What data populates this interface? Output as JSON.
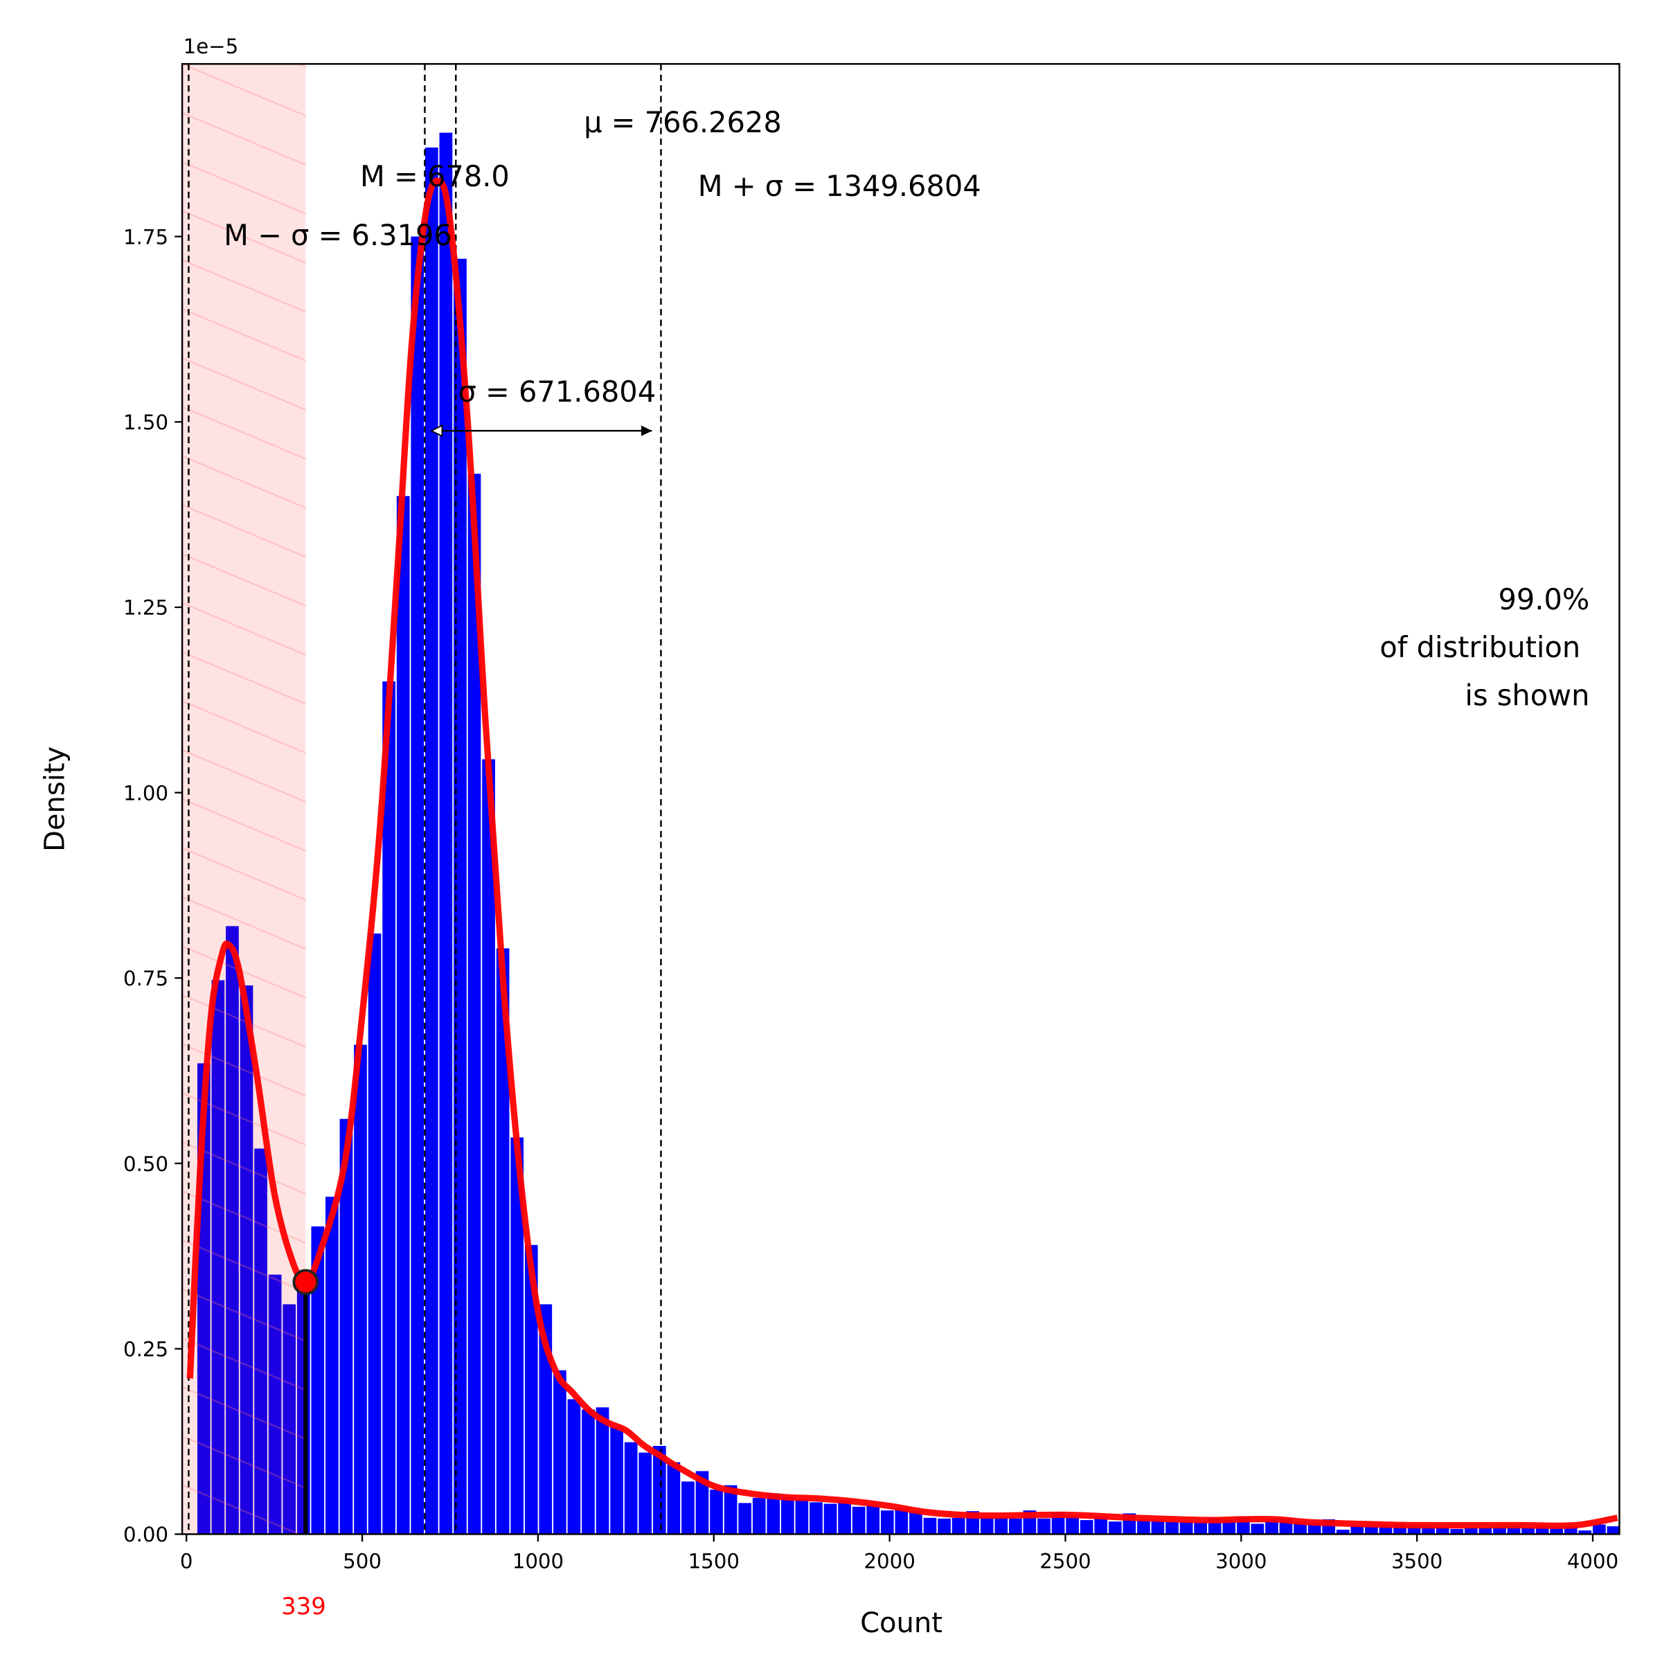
{
  "chart_data": {
    "type": "bar",
    "title": "",
    "xlabel": "Count",
    "ylabel": "Density",
    "y_offset_label": "1e−5",
    "xlim": [
      -12,
      4076
    ],
    "ylim": [
      0,
      1.983
    ],
    "y_scale_note": "values in units of 1e-5",
    "grid": false,
    "xticks": [
      "0",
      "500",
      "1000",
      "1500",
      "2000",
      "2500",
      "3000",
      "3500",
      "4000"
    ],
    "xtick_values": [
      0,
      500,
      1000,
      1500,
      2000,
      2500,
      3000,
      3500,
      4000
    ],
    "yticks": [
      "0.00",
      "0.25",
      "0.50",
      "0.75",
      "1.00",
      "1.25",
      "1.50",
      "1.75"
    ],
    "ytick_values": [
      0,
      0.25,
      0.5,
      0.75,
      1.0,
      1.25,
      1.5,
      1.75
    ],
    "histogram": {
      "bin_start": 31,
      "bin_width": 40.5,
      "color": "#0000ff",
      "values": [
        0.635,
        0.747,
        0.82,
        0.74,
        0.52,
        0.35,
        0.31,
        0.33,
        0.415,
        0.455,
        0.56,
        0.66,
        0.81,
        1.15,
        1.4,
        1.75,
        1.87,
        1.89,
        1.72,
        1.43,
        1.045,
        0.79,
        0.535,
        0.39,
        0.31,
        0.221,
        0.182,
        0.168,
        0.171,
        0.144,
        0.124,
        0.11,
        0.119,
        0.097,
        0.071,
        0.085,
        0.06,
        0.066,
        0.042,
        0.049,
        0.055,
        0.05,
        0.048,
        0.043,
        0.041,
        0.046,
        0.037,
        0.04,
        0.032,
        0.035,
        0.031,
        0.022,
        0.021,
        0.022,
        0.031,
        0.023,
        0.023,
        0.021,
        0.032,
        0.021,
        0.03,
        0.025,
        0.019,
        0.024,
        0.017,
        0.028,
        0.02,
        0.019,
        0.0165,
        0.0165,
        0.017,
        0.022,
        0.019,
        0.024,
        0.014,
        0.02,
        0.021,
        0.017,
        0.016,
        0.02,
        0.006,
        0.012,
        0.012,
        0.013,
        0.014,
        0.012,
        0.0115,
        0.0097,
        0.007,
        0.0087,
        0.008,
        0.01,
        0.0106,
        0.0087,
        0.0115,
        0.0097,
        0.0106,
        0.005,
        0.013,
        0.0106
      ]
    },
    "kde": {
      "color": "#ff0000",
      "points": [
        [
          10,
          0.21
        ],
        [
          40,
          0.5
        ],
        [
          70,
          0.7
        ],
        [
          100,
          0.78
        ],
        [
          120,
          0.795
        ],
        [
          150,
          0.76
        ],
        [
          200,
          0.62
        ],
        [
          250,
          0.46
        ],
        [
          300,
          0.37
        ],
        [
          339,
          0.34
        ],
        [
          380,
          0.38
        ],
        [
          450,
          0.5
        ],
        [
          500,
          0.7
        ],
        [
          550,
          0.95
        ],
        [
          600,
          1.3
        ],
        [
          640,
          1.6
        ],
        [
          680,
          1.78
        ],
        [
          715,
          1.825
        ],
        [
          750,
          1.77
        ],
        [
          800,
          1.5
        ],
        [
          850,
          1.1
        ],
        [
          900,
          0.75
        ],
        [
          950,
          0.48
        ],
        [
          1000,
          0.3
        ],
        [
          1050,
          0.22
        ],
        [
          1100,
          0.19
        ],
        [
          1150,
          0.165
        ],
        [
          1200,
          0.15
        ],
        [
          1250,
          0.14
        ],
        [
          1300,
          0.12
        ],
        [
          1350,
          0.105
        ],
        [
          1400,
          0.09
        ],
        [
          1500,
          0.065
        ],
        [
          1600,
          0.055
        ],
        [
          1700,
          0.05
        ],
        [
          1800,
          0.048
        ],
        [
          1900,
          0.044
        ],
        [
          2000,
          0.038
        ],
        [
          2100,
          0.03
        ],
        [
          2200,
          0.026
        ],
        [
          2300,
          0.025
        ],
        [
          2500,
          0.026
        ],
        [
          2700,
          0.022
        ],
        [
          2900,
          0.019
        ],
        [
          3000,
          0.02
        ],
        [
          3100,
          0.02
        ],
        [
          3200,
          0.016
        ],
        [
          3400,
          0.013
        ],
        [
          3500,
          0.012
        ],
        [
          3700,
          0.012
        ],
        [
          3800,
          0.012
        ],
        [
          3950,
          0.012
        ],
        [
          4070,
          0.022
        ]
      ]
    },
    "shaded_region": {
      "from": -12,
      "to": 339,
      "color": "#ffe4e4"
    },
    "minimum_marker": {
      "x": 339,
      "y": 0.34,
      "label": "339",
      "label_color": "#ff0000"
    },
    "vlines": [
      {
        "name": "M-sigma",
        "x": 6.3196
      },
      {
        "name": "median",
        "x": 678.0
      },
      {
        "name": "mean",
        "x": 766.2628
      },
      {
        "name": "M+sigma",
        "x": 1349.6804
      }
    ],
    "sigma_arrow": {
      "from": 697,
      "to": 1324,
      "y": 1.488
    },
    "annotations": {
      "mean": "μ = 766.2628",
      "median": "M = 678.0",
      "m_minus_sigma": "M − σ = 6.3196",
      "m_plus_sigma": "M + σ = 1349.6804",
      "sigma": "σ = 671.6804",
      "coverage_line1": "99.0%",
      "coverage_line2": "of distribution ",
      "coverage_line3": "is shown"
    }
  }
}
